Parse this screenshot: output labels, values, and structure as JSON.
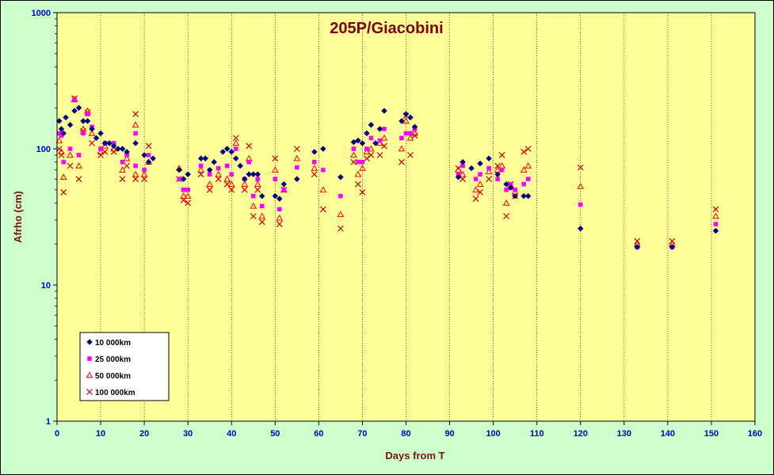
{
  "chart_data": {
    "type": "scatter",
    "title": "205P/Giacobini",
    "xlabel": "Days from  T",
    "ylabel": "Afrho (cm)",
    "xlim": [
      0,
      160
    ],
    "ylim": [
      1,
      1000
    ],
    "yscale": "log",
    "x_ticks": [
      "0",
      "10",
      "20",
      "30",
      "40",
      "50",
      "60",
      "70",
      "80",
      "90",
      "100",
      "110",
      "120",
      "130",
      "140",
      "150",
      "160"
    ],
    "y_ticks": [
      "1",
      "10",
      "100",
      "1000"
    ],
    "grid": "vertical",
    "legend_position": "bottom-left",
    "colors": {
      "plot_bg": "#ffff99",
      "outer_bg": "#ccffcc"
    },
    "series": [
      {
        "name": "10 000km",
        "marker": "diamond",
        "color": "#000080",
        "points": [
          [
            0.5,
            160
          ],
          [
            1,
            140
          ],
          [
            1.5,
            130
          ],
          [
            2,
            170
          ],
          [
            3,
            150
          ],
          [
            4,
            190
          ],
          [
            5,
            200
          ],
          [
            6,
            160
          ],
          [
            7,
            160
          ],
          [
            8,
            140
          ],
          [
            9,
            120
          ],
          [
            10,
            130
          ],
          [
            11,
            110
          ],
          [
            12,
            110
          ],
          [
            13,
            105
          ],
          [
            14,
            100
          ],
          [
            15,
            100
          ],
          [
            16,
            95
          ],
          [
            18,
            110
          ],
          [
            20,
            90
          ],
          [
            21,
            80
          ],
          [
            22,
            85
          ],
          [
            28,
            70
          ],
          [
            29,
            60
          ],
          [
            30,
            65
          ],
          [
            33,
            85
          ],
          [
            34,
            85
          ],
          [
            35,
            70
          ],
          [
            36,
            80
          ],
          [
            38,
            95
          ],
          [
            39,
            100
          ],
          [
            40,
            95
          ],
          [
            41,
            85
          ],
          [
            42,
            75
          ],
          [
            43,
            60
          ],
          [
            44,
            65
          ],
          [
            45,
            65
          ],
          [
            46,
            65
          ],
          [
            47,
            45
          ],
          [
            50,
            45
          ],
          [
            51,
            43
          ],
          [
            52,
            55
          ],
          [
            55,
            60
          ],
          [
            59,
            95
          ],
          [
            61,
            100
          ],
          [
            65,
            62
          ],
          [
            68,
            112
          ],
          [
            69,
            115
          ],
          [
            70,
            110
          ],
          [
            71,
            130
          ],
          [
            72,
            150
          ],
          [
            73,
            110
          ],
          [
            74,
            140
          ],
          [
            75,
            190
          ],
          [
            79,
            160
          ],
          [
            80,
            180
          ],
          [
            81,
            170
          ],
          [
            82,
            145
          ],
          [
            92,
            62
          ],
          [
            93,
            80
          ],
          [
            95,
            72
          ],
          [
            97,
            78
          ],
          [
            99,
            85
          ],
          [
            101,
            65
          ],
          [
            103,
            55
          ],
          [
            104,
            52
          ],
          [
            105,
            45
          ],
          [
            107,
            45
          ],
          [
            108,
            45
          ],
          [
            120,
            26
          ],
          [
            133,
            19
          ],
          [
            141,
            19
          ],
          [
            151,
            25
          ]
        ]
      },
      {
        "name": "25 000km",
        "marker": "square",
        "color": "#ff00ff",
        "points": [
          [
            0.5,
            130
          ],
          [
            1,
            125
          ],
          [
            1.5,
            80
          ],
          [
            3,
            100
          ],
          [
            4,
            230
          ],
          [
            5,
            90
          ],
          [
            6,
            130
          ],
          [
            7,
            180
          ],
          [
            8,
            145
          ],
          [
            10,
            100
          ],
          [
            11,
            110
          ],
          [
            13,
            110
          ],
          [
            15,
            80
          ],
          [
            16,
            90
          ],
          [
            18,
            75
          ],
          [
            18,
            130
          ],
          [
            20,
            70
          ],
          [
            21,
            90
          ],
          [
            28,
            60
          ],
          [
            29,
            50
          ],
          [
            30,
            50
          ],
          [
            33,
            75
          ],
          [
            35,
            65
          ],
          [
            37,
            72
          ],
          [
            39,
            75
          ],
          [
            40,
            65
          ],
          [
            41,
            100
          ],
          [
            43,
            60
          ],
          [
            44,
            80
          ],
          [
            45,
            45
          ],
          [
            46,
            60
          ],
          [
            47,
            38
          ],
          [
            50,
            60
          ],
          [
            51,
            36
          ],
          [
            52,
            50
          ],
          [
            55,
            73
          ],
          [
            59,
            80
          ],
          [
            61,
            70
          ],
          [
            65,
            45
          ],
          [
            68,
            100
          ],
          [
            69,
            80
          ],
          [
            70,
            80
          ],
          [
            71,
            100
          ],
          [
            72,
            120
          ],
          [
            74,
            115
          ],
          [
            75,
            140
          ],
          [
            79,
            120
          ],
          [
            80,
            130
          ],
          [
            81,
            130
          ],
          [
            82,
            140
          ],
          [
            92,
            65
          ],
          [
            93,
            75
          ],
          [
            96,
            60
          ],
          [
            97,
            65
          ],
          [
            99,
            72
          ],
          [
            101,
            60
          ],
          [
            102,
            70
          ],
          [
            103,
            50
          ],
          [
            104,
            55
          ],
          [
            105,
            50
          ],
          [
            107,
            55
          ],
          [
            108,
            60
          ],
          [
            120,
            39
          ],
          [
            133,
            19
          ],
          [
            141,
            19
          ],
          [
            151,
            28
          ]
        ]
      },
      {
        "name": "50 000km",
        "marker": "triangle",
        "color": "#ff0000",
        "points": [
          [
            0.5,
            115
          ],
          [
            1,
            95
          ],
          [
            1.5,
            62
          ],
          [
            3,
            90
          ],
          [
            4,
            230
          ],
          [
            5,
            75
          ],
          [
            6,
            140
          ],
          [
            7,
            190
          ],
          [
            8,
            130
          ],
          [
            10,
            95
          ],
          [
            11,
            105
          ],
          [
            13,
            100
          ],
          [
            15,
            70
          ],
          [
            16,
            85
          ],
          [
            18,
            65
          ],
          [
            18,
            150
          ],
          [
            20,
            65
          ],
          [
            21,
            80
          ],
          [
            28,
            72
          ],
          [
            29,
            45
          ],
          [
            30,
            45
          ],
          [
            33,
            70
          ],
          [
            35,
            55
          ],
          [
            37,
            65
          ],
          [
            39,
            60
          ],
          [
            40,
            55
          ],
          [
            41,
            110
          ],
          [
            43,
            55
          ],
          [
            44,
            85
          ],
          [
            45,
            38
          ],
          [
            46,
            55
          ],
          [
            47,
            32
          ],
          [
            50,
            70
          ],
          [
            51,
            31
          ],
          [
            52,
            50
          ],
          [
            55,
            85
          ],
          [
            59,
            72
          ],
          [
            61,
            50
          ],
          [
            65,
            33
          ],
          [
            68,
            90
          ],
          [
            69,
            65
          ],
          [
            70,
            72
          ],
          [
            71,
            95
          ],
          [
            72,
            100
          ],
          [
            74,
            110
          ],
          [
            75,
            120
          ],
          [
            79,
            100
          ],
          [
            80,
            160
          ],
          [
            81,
            120
          ],
          [
            82,
            130
          ],
          [
            92,
            70
          ],
          [
            93,
            65
          ],
          [
            96,
            50
          ],
          [
            97,
            55
          ],
          [
            99,
            68
          ],
          [
            101,
            70
          ],
          [
            102,
            75
          ],
          [
            103,
            40
          ],
          [
            104,
            52
          ],
          [
            105,
            48
          ],
          [
            107,
            70
          ],
          [
            108,
            75
          ],
          [
            120,
            53
          ],
          [
            133,
            20
          ],
          [
            141,
            20
          ],
          [
            151,
            32
          ]
        ]
      },
      {
        "name": "100 000km",
        "marker": "x",
        "color": "#cc0000",
        "points": [
          [
            0.5,
            100
          ],
          [
            1,
            90
          ],
          [
            1.5,
            48
          ],
          [
            3,
            75
          ],
          [
            4,
            235
          ],
          [
            5,
            60
          ],
          [
            6,
            135
          ],
          [
            7,
            185
          ],
          [
            8,
            110
          ],
          [
            10,
            90
          ],
          [
            11,
            95
          ],
          [
            13,
            95
          ],
          [
            15,
            60
          ],
          [
            16,
            75
          ],
          [
            18,
            60
          ],
          [
            18,
            180
          ],
          [
            20,
            60
          ],
          [
            21,
            105
          ],
          [
            28,
            60
          ],
          [
            29,
            42
          ],
          [
            30,
            40
          ],
          [
            33,
            65
          ],
          [
            35,
            50
          ],
          [
            37,
            60
          ],
          [
            39,
            55
          ],
          [
            40,
            50
          ],
          [
            41,
            120
          ],
          [
            43,
            50
          ],
          [
            44,
            105
          ],
          [
            45,
            32
          ],
          [
            46,
            50
          ],
          [
            47,
            29
          ],
          [
            50,
            85
          ],
          [
            51,
            28
          ],
          [
            52,
            50
          ],
          [
            55,
            100
          ],
          [
            59,
            65
          ],
          [
            61,
            36
          ],
          [
            65,
            26
          ],
          [
            68,
            80
          ],
          [
            69,
            55
          ],
          [
            70,
            48
          ],
          [
            71,
            85
          ],
          [
            72,
            90
          ],
          [
            74,
            90
          ],
          [
            75,
            105
          ],
          [
            79,
            80
          ],
          [
            80,
            175
          ],
          [
            81,
            90
          ],
          [
            82,
            125
          ],
          [
            92,
            72
          ],
          [
            93,
            60
          ],
          [
            96,
            43
          ],
          [
            97,
            48
          ],
          [
            99,
            60
          ],
          [
            101,
            75
          ],
          [
            102,
            90
          ],
          [
            103,
            32
          ],
          [
            104,
            55
          ],
          [
            105,
            45
          ],
          [
            107,
            95
          ],
          [
            108,
            100
          ],
          [
            120,
            73
          ],
          [
            133,
            21
          ],
          [
            141,
            21
          ],
          [
            151,
            36
          ]
        ]
      }
    ]
  }
}
